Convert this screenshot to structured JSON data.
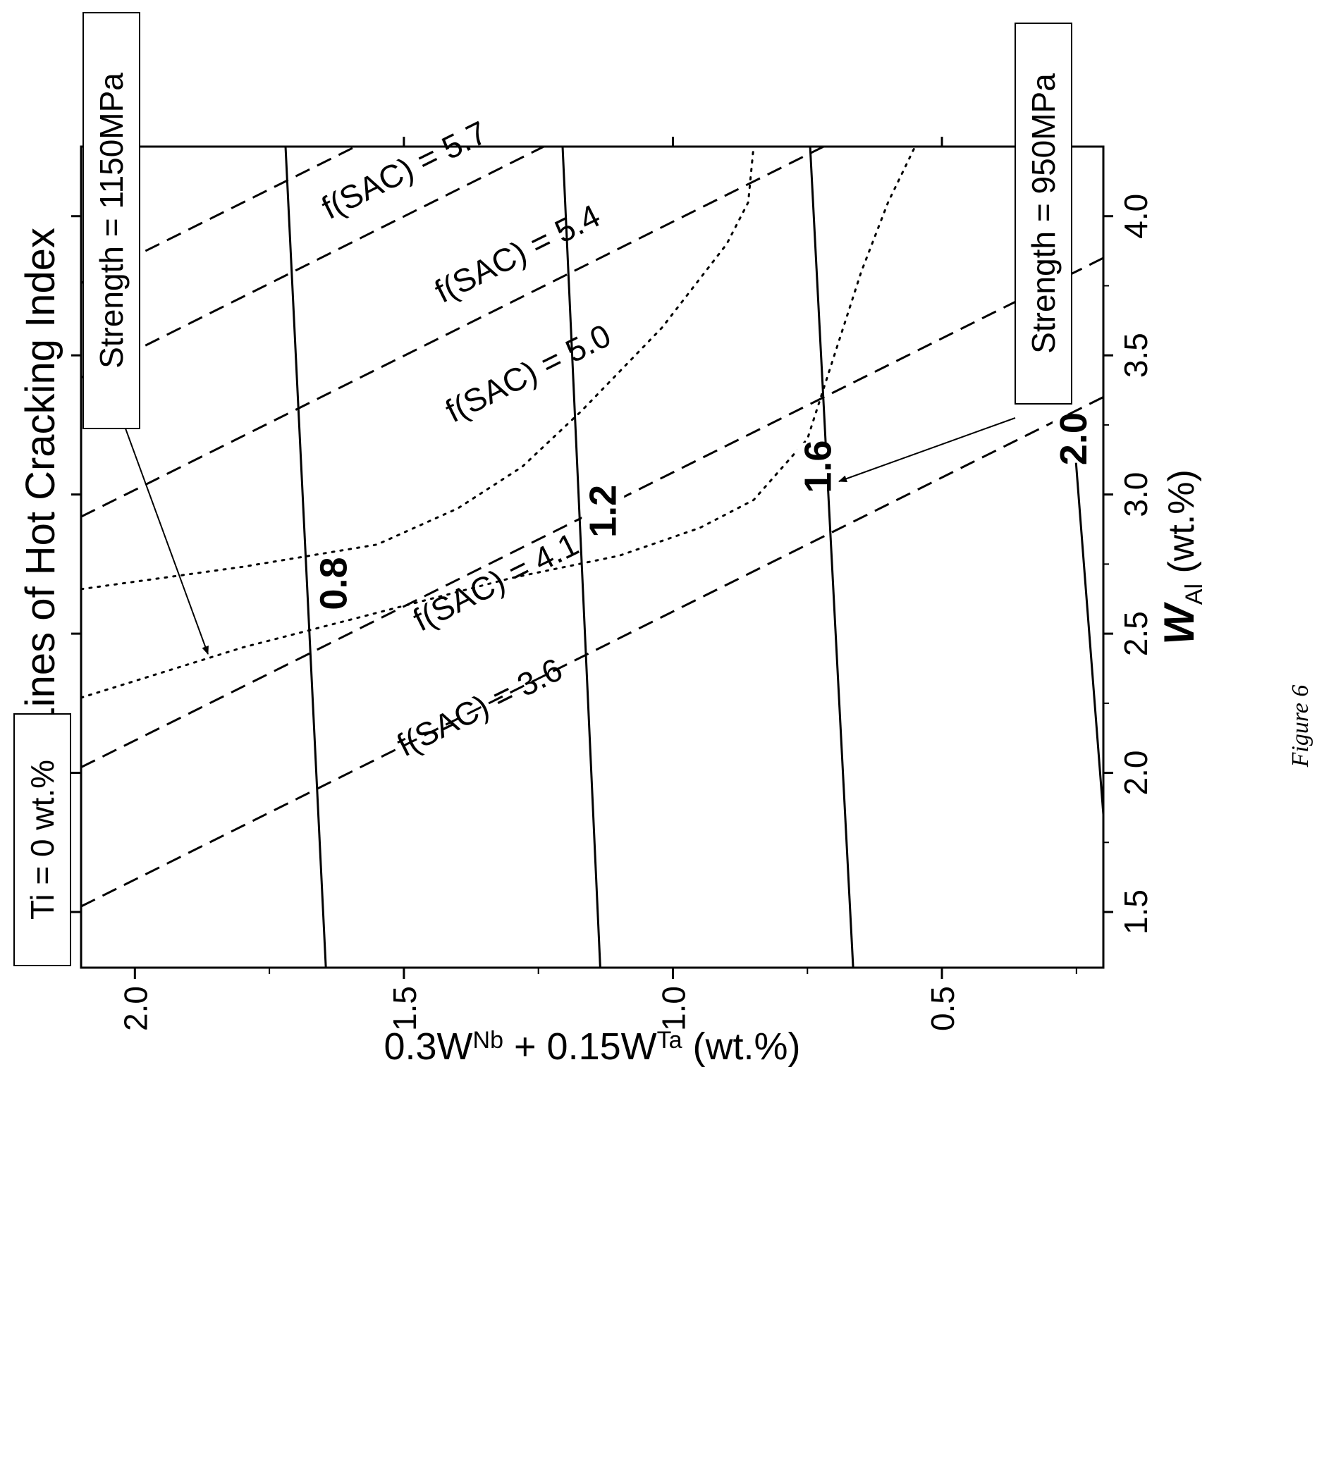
{
  "chart_data": {
    "type": "line",
    "title": "Contour Lines of Hot Cracking Index",
    "xlabel": {
      "main": "W",
      "sub": "Al",
      "rest": " (wt.%)"
    },
    "ylabel": {
      "p1": "0.3W",
      "s1": "Nb",
      "p2": " + 0.15W",
      "s2": "Ta",
      "p3": " (wt.%)"
    },
    "xlim": [
      1.3,
      4.25
    ],
    "ylim": [
      0.2,
      2.1
    ],
    "x_ticks": [
      "1.5",
      "2.0",
      "2.5",
      "3.0",
      "3.5",
      "4.0"
    ],
    "y_ticks": [
      "2.0",
      "1.5",
      "1.0",
      "0.5"
    ],
    "hot_cracking_index": [
      {
        "label": "0.8",
        "points": [
          [
            1.3,
            1.645
          ],
          [
            4.25,
            1.72
          ]
        ],
        "label_at": [
          2.68,
          1.63
        ]
      },
      {
        "label": "1.2",
        "points": [
          [
            1.3,
            1.135
          ],
          [
            4.25,
            1.205
          ]
        ],
        "label_at": [
          2.94,
          1.13
        ]
      },
      {
        "label": "1.6",
        "points": [
          [
            1.3,
            0.665
          ],
          [
            4.25,
            0.745
          ]
        ],
        "label_at": [
          3.1,
          0.73
        ]
      },
      {
        "label": "2.0",
        "points": [
          [
            1.85,
            0.2
          ],
          [
            3.22,
            0.255
          ]
        ],
        "label_at": [
          3.2,
          0.255
        ]
      }
    ],
    "sac_lines": [
      {
        "label": "f(SAC) = 3.6",
        "points": [
          [
            1.52,
            2.1
          ],
          [
            3.35,
            0.2
          ]
        ],
        "label_at": [
          2.2,
          1.35
        ]
      },
      {
        "label": "f(SAC) = 4.1",
        "points": [
          [
            2.02,
            2.1
          ],
          [
            3.85,
            0.2
          ]
        ],
        "label_at": [
          2.65,
          1.32
        ]
      },
      {
        "label": "f(SAC) = 5.0",
        "points": [
          [
            2.92,
            2.1
          ],
          [
            4.25,
            0.72
          ]
        ],
        "label_at": [
          3.4,
          1.26
        ]
      },
      {
        "label": "f(SAC) = 5.4",
        "points": [
          [
            3.42,
            2.1
          ],
          [
            4.25,
            1.24
          ]
        ],
        "label_at": [
          3.83,
          1.28
        ]
      },
      {
        "label": "f(SAC) = 5.7",
        "points": [
          [
            3.76,
            2.1
          ],
          [
            4.25,
            1.59
          ]
        ],
        "label_at": [
          4.13,
          1.49
        ]
      }
    ],
    "strength_curves": [
      {
        "label": "Strength = 1150MPa",
        "points": [
          [
            2.27,
            2.1
          ],
          [
            2.45,
            1.8
          ],
          [
            2.6,
            1.5
          ],
          [
            2.7,
            1.3
          ],
          [
            2.78,
            1.1
          ],
          [
            2.88,
            0.95
          ],
          [
            2.98,
            0.85
          ],
          [
            3.2,
            0.75
          ],
          [
            3.5,
            0.7
          ],
          [
            3.8,
            0.65
          ],
          [
            4.05,
            0.6
          ],
          [
            4.25,
            0.55
          ]
        ]
      },
      {
        "label": "Strength = 950MPa",
        "points": [
          [
            2.66,
            2.1
          ],
          [
            2.74,
            1.8
          ],
          [
            2.82,
            1.55
          ],
          [
            2.95,
            1.4
          ],
          [
            3.1,
            1.28
          ],
          [
            3.3,
            1.17
          ],
          [
            3.6,
            1.02
          ],
          [
            3.9,
            0.9
          ],
          [
            4.05,
            0.86
          ],
          [
            4.25,
            0.85
          ]
        ]
      }
    ],
    "annotations": {
      "ti": "Ti = 0 wt.%",
      "strength_high": "Strength = 1150MPa",
      "strength_low": "Strength = 950MPa"
    },
    "caption": "Figure 6"
  }
}
